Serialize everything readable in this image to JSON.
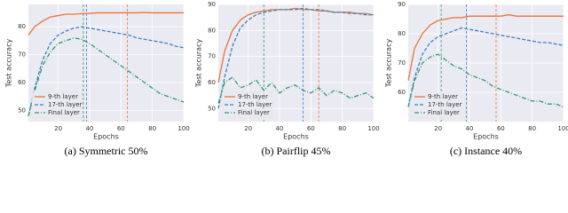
{
  "chart_data": [
    {
      "type": "line",
      "caption": "(a) Symmetric 50%",
      "xlabel": "Epochs",
      "ylabel": "Test accuracy",
      "x": [
        1,
        5,
        10,
        15,
        20,
        25,
        30,
        35,
        40,
        45,
        50,
        55,
        60,
        65,
        70,
        75,
        80,
        85,
        90,
        95,
        100
      ],
      "xlim": [
        1,
        100
      ],
      "xticks": [
        20,
        40,
        60,
        80,
        100
      ],
      "ylim": [
        46,
        88
      ],
      "yticks": [
        50,
        60,
        70,
        80
      ],
      "grid": true,
      "legend": "lower left",
      "vlines": [
        64,
        38,
        36
      ],
      "series": [
        {
          "name": "9-th layer",
          "color": "#e8743b",
          "dash": "",
          "values": [
            77,
            80,
            82,
            83.5,
            84,
            84.5,
            84.5,
            84.7,
            84.8,
            85,
            85,
            85,
            85,
            85,
            85,
            85.1,
            85,
            85,
            85,
            85,
            85
          ]
        },
        {
          "name": "17-th layer",
          "color": "#3b82c4",
          "dash": "4,2",
          "values": [
            48,
            58,
            68,
            74,
            77,
            78.5,
            79.5,
            80,
            79.5,
            79,
            78.5,
            78,
            77.5,
            77,
            76,
            75.5,
            75,
            74.5,
            74,
            73,
            72.5
          ]
        },
        {
          "name": "Final layer",
          "color": "#2e9a6a",
          "dash": "5,2,1,2",
          "values": [
            48,
            57,
            66,
            71,
            74,
            75,
            76,
            75.5,
            74,
            72,
            70,
            68,
            66,
            64,
            62,
            60,
            58,
            56,
            55,
            54,
            53
          ]
        }
      ]
    },
    {
      "type": "line",
      "caption": "(b) Pairflip 45%",
      "xlabel": "Epochs",
      "ylabel": "Test accuracy",
      "x": [
        1,
        5,
        10,
        15,
        20,
        25,
        30,
        35,
        40,
        45,
        50,
        55,
        60,
        65,
        70,
        75,
        80,
        85,
        90,
        95,
        100
      ],
      "xlim": [
        1,
        100
      ],
      "xticks": [
        20,
        40,
        60,
        80,
        100
      ],
      "ylim": [
        45,
        90
      ],
      "yticks": [
        50,
        60,
        70,
        80,
        90
      ],
      "grid": true,
      "legend": "lower left",
      "vlines": [
        65,
        55,
        30
      ],
      "series": [
        {
          "name": "9-th layer",
          "color": "#e8743b",
          "dash": "",
          "values": [
            60,
            72,
            80,
            84,
            86,
            87,
            87.5,
            88,
            88,
            88,
            88.5,
            88,
            88,
            87.5,
            87.5,
            87,
            87,
            87,
            86.5,
            86.5,
            86
          ]
        },
        {
          "name": "17-th layer",
          "color": "#3b82c4",
          "dash": "4,2",
          "values": [
            50,
            62,
            74,
            81,
            84,
            86,
            87,
            87.5,
            88,
            88,
            88,
            88.5,
            88,
            88,
            87.5,
            87,
            87,
            86.5,
            86.5,
            86,
            86
          ]
        },
        {
          "name": "Final layer",
          "color": "#2e9a6a",
          "dash": "5,2,1,2",
          "values": [
            52,
            60,
            62,
            58,
            59,
            61,
            57,
            60,
            56,
            58,
            59,
            57,
            56,
            58,
            55,
            57,
            56,
            54,
            55,
            56,
            54
          ]
        }
      ]
    },
    {
      "type": "line",
      "caption": "(c) Instance 40%",
      "xlabel": "Epochs",
      "ylabel": "Test accuracy",
      "x": [
        1,
        5,
        10,
        15,
        20,
        25,
        30,
        35,
        40,
        45,
        50,
        55,
        60,
        65,
        70,
        75,
        80,
        85,
        90,
        95,
        100
      ],
      "xlim": [
        1,
        100
      ],
      "xticks": [
        20,
        40,
        60,
        80,
        100
      ],
      "ylim": [
        50,
        90
      ],
      "yticks": [
        60,
        70,
        80,
        90
      ],
      "grid": true,
      "legend": "lower left",
      "vlines": [
        57,
        38,
        22
      ],
      "series": [
        {
          "name": "9-th layer",
          "color": "#e8743b",
          "dash": "",
          "values": [
            64,
            75,
            80,
            83,
            84.5,
            85,
            85.5,
            85.5,
            86,
            86,
            86,
            86,
            86,
            86.5,
            86,
            86,
            86,
            86,
            86,
            86,
            86
          ]
        },
        {
          "name": "17-th layer",
          "color": "#3b82c4",
          "dash": "4,2",
          "values": [
            55,
            65,
            73,
            77,
            79,
            80,
            81,
            82,
            81.5,
            81,
            80.5,
            80,
            79.5,
            79,
            78.5,
            78,
            77.5,
            77,
            77,
            76.5,
            76
          ]
        },
        {
          "name": "Final layer",
          "color": "#2e9a6a",
          "dash": "5,2,1,2",
          "values": [
            55,
            64,
            70,
            72,
            73,
            71,
            69,
            68,
            66,
            65,
            64,
            62,
            61,
            60,
            59,
            58,
            57,
            57,
            56,
            56,
            55
          ]
        }
      ]
    }
  ]
}
